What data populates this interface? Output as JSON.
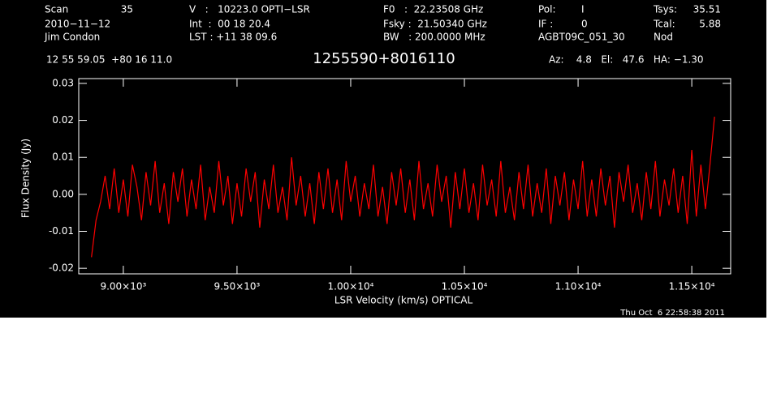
{
  "chart_data": {
    "type": "line",
    "title": "1255590+8016110",
    "header": [
      "Scan",
      "35",
      "V   :   10223.0 OPTI−LSR",
      "F0   :  22.23508 GHz",
      "Pol:",
      "I",
      "Tsys:",
      "35.51",
      "2010−11−12",
      "Int  :  00 18 20.4",
      "Fsky :  21.50340 GHz",
      "IF :",
      "0",
      "Tcal:",
      "5.88",
      "Jim Condon",
      "LST : +11 38 09.6",
      "BW   : 200.0000 MHz",
      "AGBT09C_051_30",
      "Nod",
      "12 55 59.05  +80 16 11.0",
      "Az:    4.8   El:   47.6   HA: −1.30"
    ],
    "x_label": "LSR Velocity (km/s) OPTICAL",
    "y_label": "Flux Density (Jy)",
    "timestamp": "Thu Oct  6 22:58:38 2011",
    "color": "#ff0000",
    "xlim": [
      8804,
      11671
    ],
    "ylim": [
      -0.0215,
      0.0313
    ],
    "xticks": [
      {
        "value": 9000,
        "label": "9.00×10³"
      },
      {
        "value": 9500,
        "label": "9.50×10³"
      },
      {
        "value": 10000,
        "label": "1.00×10⁴"
      },
      {
        "value": 10500,
        "label": "1.05×10⁴"
      },
      {
        "value": 11000,
        "label": "1.10×10⁴"
      },
      {
        "value": 11500,
        "label": "1.15×10⁴"
      }
    ],
    "yticks": [
      -0.02,
      -0.01,
      {
        "value": 0,
        "label": "0.00"
      },
      0.01,
      0.02,
      0.03
    ],
    "x": [
      8860,
      8880,
      8900,
      8920,
      8940,
      8960,
      8980,
      9000,
      9020,
      9040,
      9060,
      9080,
      9100,
      9120,
      9140,
      9160,
      9180,
      9200,
      9220,
      9240,
      9260,
      9280,
      9300,
      9320,
      9340,
      9360,
      9380,
      9400,
      9420,
      9440,
      9460,
      9480,
      9500,
      9520,
      9540,
      9560,
      9580,
      9600,
      9620,
      9640,
      9660,
      9680,
      9700,
      9720,
      9740,
      9760,
      9780,
      9800,
      9820,
      9840,
      9860,
      9880,
      9900,
      9920,
      9940,
      9960,
      9980,
      10000,
      10020,
      10040,
      10060,
      10080,
      10100,
      10120,
      10140,
      10160,
      10180,
      10200,
      10220,
      10240,
      10260,
      10280,
      10300,
      10320,
      10340,
      10360,
      10380,
      10400,
      10420,
      10440,
      10460,
      10480,
      10500,
      10520,
      10540,
      10560,
      10580,
      10600,
      10620,
      10640,
      10660,
      10680,
      10700,
      10720,
      10740,
      10760,
      10780,
      10800,
      10820,
      10840,
      10860,
      10880,
      10900,
      10920,
      10940,
      10960,
      10980,
      11000,
      11020,
      11040,
      11060,
      11080,
      11100,
      11120,
      11140,
      11160,
      11180,
      11200,
      11220,
      11240,
      11260,
      11280,
      11300,
      11320,
      11340,
      11360,
      11380,
      11400,
      11420,
      11440,
      11460,
      11480,
      11500,
      11520,
      11540,
      11560,
      11580,
      11600
    ],
    "values": [
      -0.017,
      -0.007,
      -0.002,
      0.005,
      -0.004,
      0.007,
      -0.005,
      0.004,
      -0.006,
      0.008,
      0.002,
      -0.007,
      0.006,
      -0.003,
      0.009,
      -0.005,
      0.003,
      -0.008,
      0.006,
      -0.002,
      0.007,
      -0.006,
      0.004,
      -0.004,
      0.008,
      -0.007,
      0.002,
      -0.005,
      0.009,
      -0.003,
      0.005,
      -0.008,
      0.003,
      -0.006,
      0.007,
      -0.002,
      0.006,
      -0.009,
      0.004,
      -0.004,
      0.008,
      -0.005,
      0.002,
      -0.007,
      0.01,
      -0.003,
      0.005,
      -0.006,
      0.003,
      -0.008,
      0.006,
      -0.004,
      0.007,
      -0.005,
      0.004,
      -0.007,
      0.009,
      -0.002,
      0.005,
      -0.006,
      0.003,
      -0.004,
      0.008,
      -0.006,
      0.002,
      -0.008,
      0.006,
      -0.003,
      0.007,
      -0.005,
      0.004,
      -0.007,
      0.009,
      -0.004,
      0.003,
      -0.006,
      0.008,
      -0.002,
      0.005,
      -0.009,
      0.006,
      -0.004,
      0.007,
      -0.005,
      0.003,
      -0.007,
      0.008,
      -0.003,
      0.004,
      -0.006,
      0.009,
      -0.005,
      0.002,
      -0.007,
      0.006,
      -0.004,
      0.008,
      -0.006,
      0.003,
      -0.005,
      0.007,
      -0.008,
      0.005,
      -0.003,
      0.006,
      -0.007,
      0.004,
      -0.004,
      0.009,
      -0.006,
      0.004,
      -0.006,
      0.007,
      -0.003,
      0.005,
      -0.009,
      0.006,
      -0.002,
      0.008,
      -0.005,
      0.003,
      -0.007,
      0.006,
      -0.004,
      0.009,
      -0.006,
      0.004,
      -0.003,
      0.007,
      -0.005,
      0.005,
      -0.008,
      0.012,
      -0.006,
      0.008,
      -0.004,
      0.008,
      0.021
    ]
  }
}
